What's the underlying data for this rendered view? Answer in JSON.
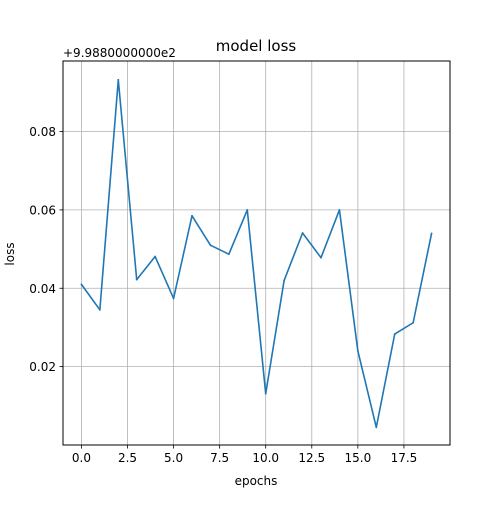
{
  "chart_data": {
    "type": "line",
    "title": "model loss",
    "xlabel": "epochs",
    "ylabel": "loss",
    "offset_label": "+9.9880000000e2",
    "grid": true,
    "xlim": [
      -1.0,
      20.0
    ],
    "ylim": [
      0.0,
      0.098
    ],
    "xticks": [
      0.0,
      2.5,
      5.0,
      7.5,
      10.0,
      12.5,
      15.0,
      17.5
    ],
    "xtick_labels": [
      "0.0",
      "2.5",
      "5.0",
      "7.5",
      "10.0",
      "12.5",
      "15.0",
      "17.5"
    ],
    "yticks": [
      0.02,
      0.04,
      0.06,
      0.08
    ],
    "ytick_labels": [
      "0.02",
      "0.04",
      "0.06",
      "0.08"
    ],
    "series": [
      {
        "color": "#1f77b4",
        "x": [
          0,
          1,
          2,
          3,
          4,
          5,
          6,
          7,
          8,
          9,
          10,
          11,
          12,
          13,
          14,
          15,
          16,
          17,
          18,
          19
        ],
        "y": [
          0.041,
          0.0345,
          0.0932,
          0.0422,
          0.0481,
          0.0374,
          0.0585,
          0.051,
          0.0487,
          0.06,
          0.0131,
          0.042,
          0.0541,
          0.0478,
          0.06,
          0.024,
          0.0045,
          0.0283,
          0.0312,
          0.054
        ]
      }
    ]
  }
}
